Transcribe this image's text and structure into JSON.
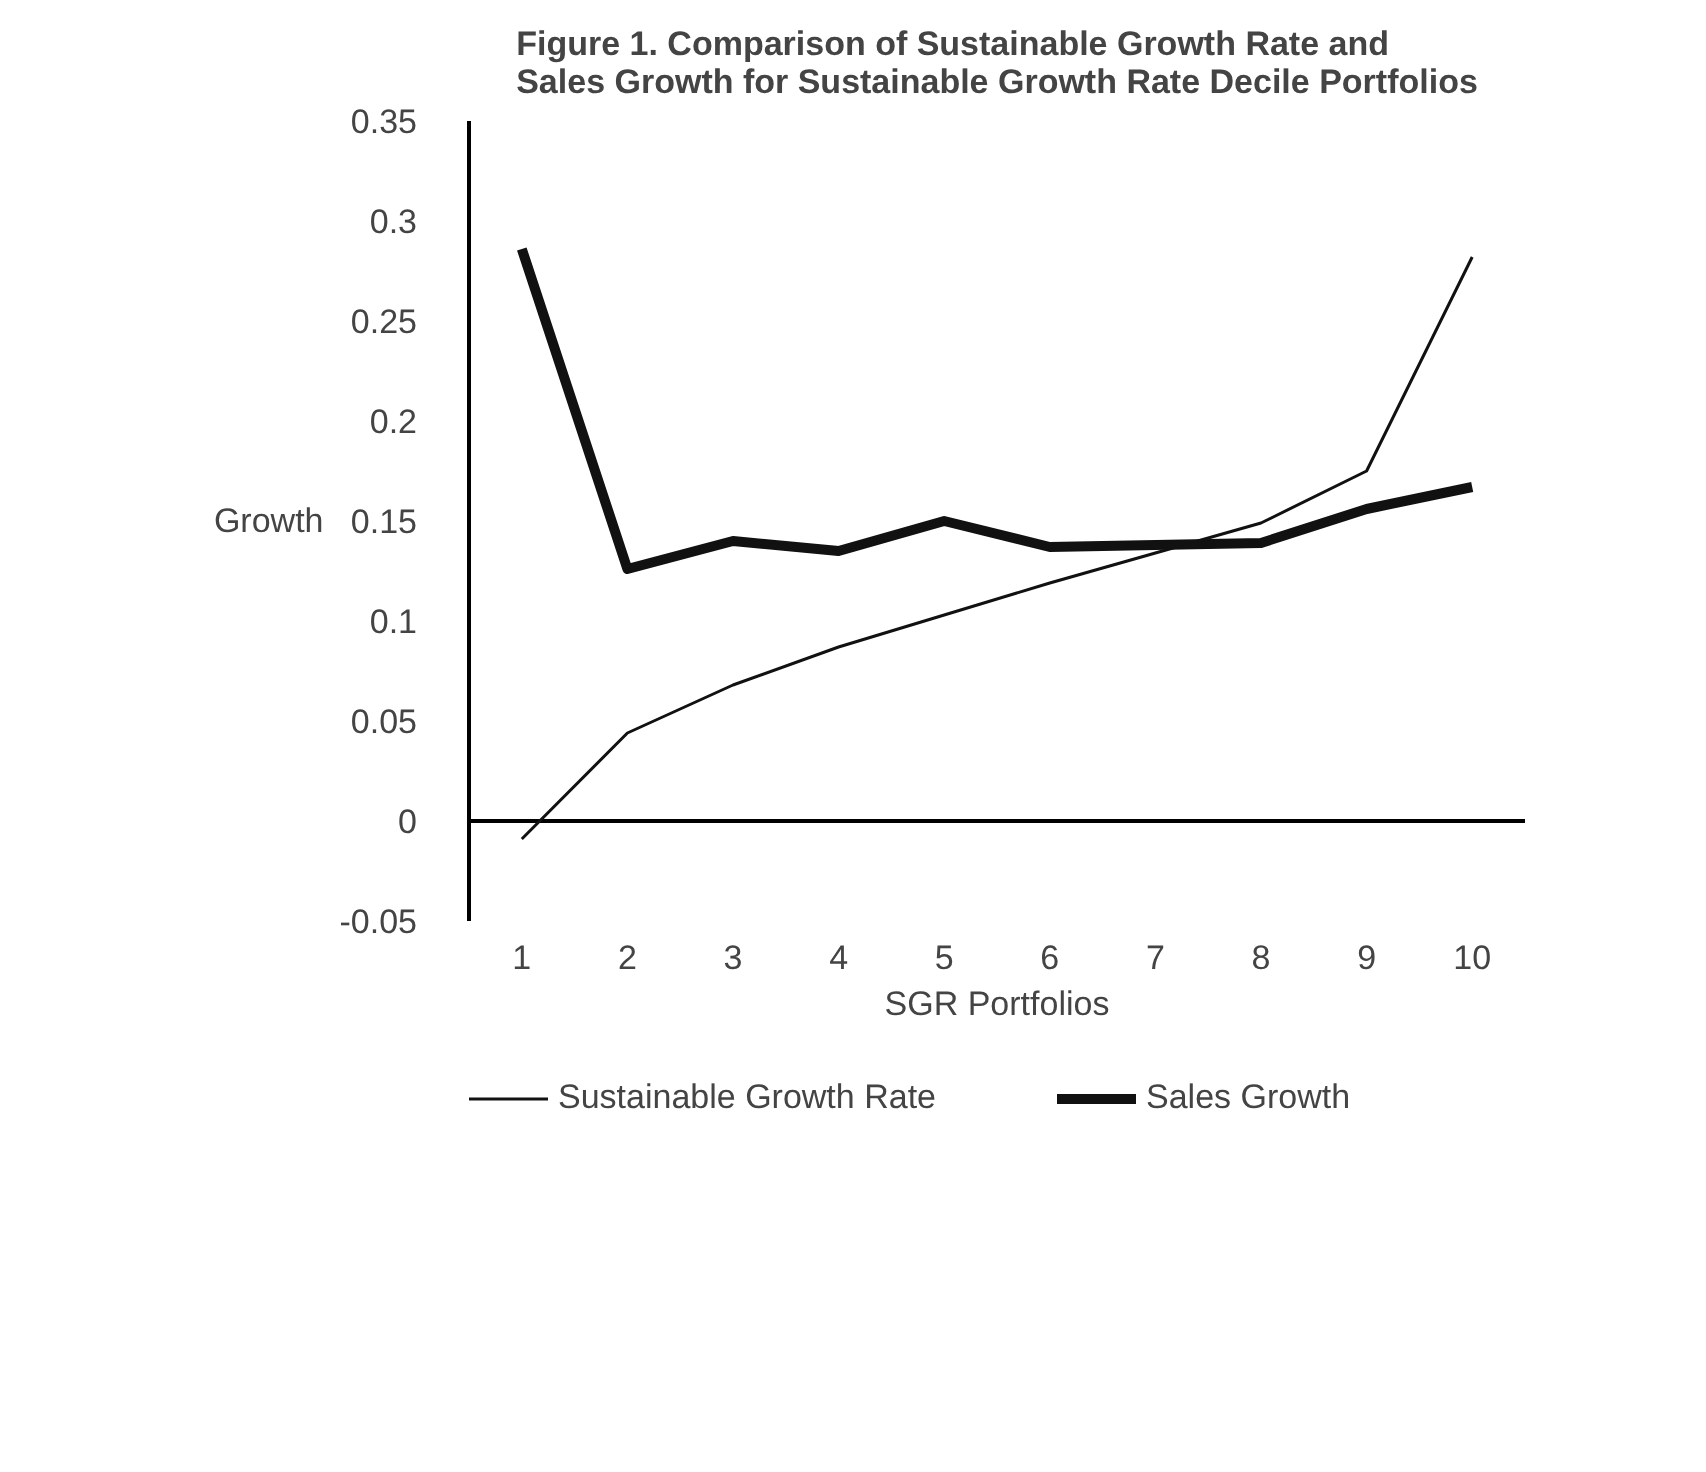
{
  "chart_data": {
    "type": "line",
    "title": "Figure 1. Comparison of Sustainable Growth Rate and\nSales Growth for Sustainable Growth Rate Decile Portfolios",
    "xlabel": "SGR Portfolios",
    "ylabel": "Growth",
    "categories": [
      "1",
      "2",
      "3",
      "4",
      "5",
      "6",
      "7",
      "8",
      "9",
      "10"
    ],
    "series": [
      {
        "name": "Sustainable Growth Rate",
        "color": "#111111",
        "values": [
          -0.009,
          0.044,
          0.068,
          0.087,
          0.103,
          0.119,
          0.134,
          0.149,
          0.175,
          0.282
        ]
      },
      {
        "name": "Sales Growth",
        "color": "#111111",
        "values": [
          0.286,
          0.126,
          0.14,
          0.135,
          0.15,
          0.137,
          0.138,
          0.139,
          0.156,
          0.167
        ]
      }
    ],
    "ylim": [
      -0.05,
      0.35
    ],
    "yticks": [
      -0.05,
      0,
      0.05,
      0.1,
      0.15,
      0.2,
      0.25,
      0.3,
      0.35
    ],
    "grid": false,
    "ref_lines": [
      {
        "axis": "y",
        "value": 0,
        "color": "#000000"
      }
    ],
    "legend": "bottom left",
    "marker": "none",
    "line_style": "solid"
  }
}
